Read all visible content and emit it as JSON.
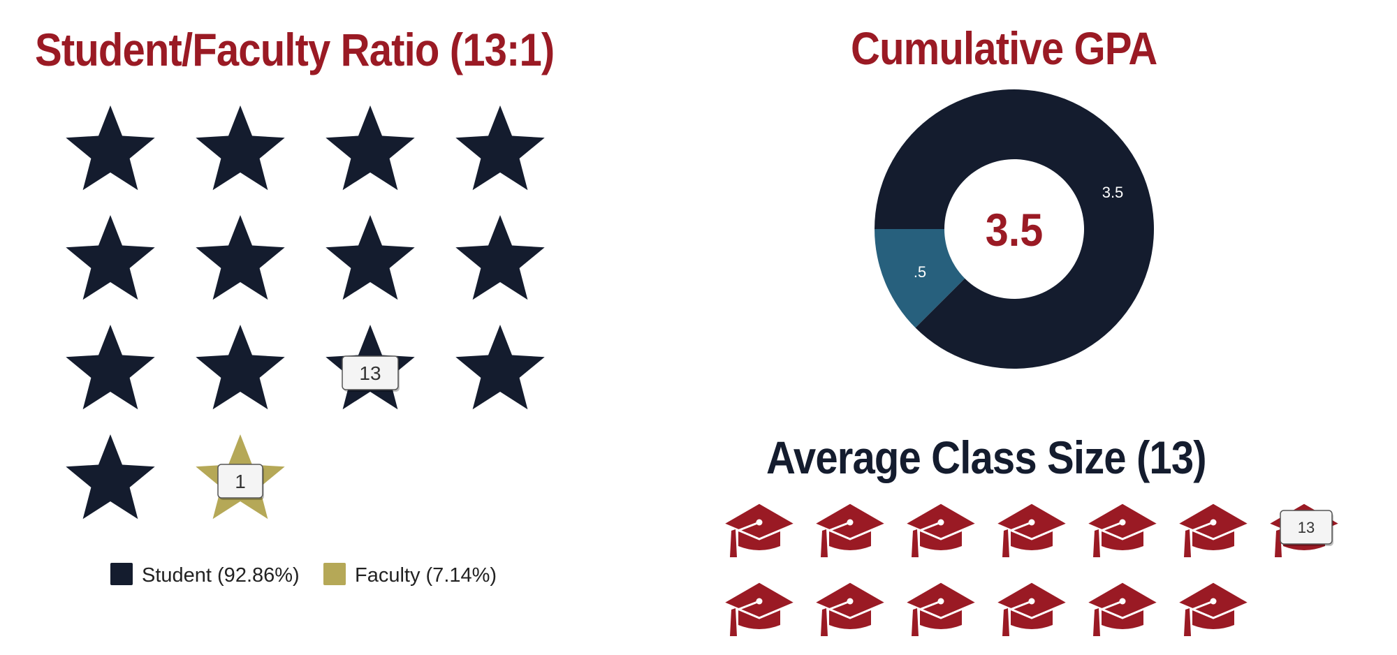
{
  "colors": {
    "student": "#141c2e",
    "faculty": "#b5a857",
    "gpa_main": "#141c2e",
    "gpa_rest": "#27607d",
    "cap": "#9a1a24",
    "title_red": "#9a1a24",
    "title_navy": "#141c2e"
  },
  "icons": {
    "ratio": "star-icon",
    "class_size": "graduation-cap-icon"
  },
  "chart_data": [
    {
      "type": "pictograph",
      "title": "Student/Faculty Ratio (13:1)",
      "icon": "star-icon",
      "series": [
        {
          "name": "Student",
          "value": 13,
          "label": "13",
          "legend": "Student (92.86%)",
          "color": "#141c2e"
        },
        {
          "name": "Faculty",
          "value": 1,
          "label": "1",
          "legend": "Faculty (7.14%)",
          "color": "#b5a857"
        }
      ],
      "columns": 4,
      "legend_position": "bottom"
    },
    {
      "type": "pie",
      "title": "Cumulative GPA",
      "center_label": "3.5",
      "slices": [
        {
          "value": 3.5,
          "label": "3.5",
          "color": "#141c2e"
        },
        {
          "value": 0.5,
          "label": ".5",
          "color": "#27607d"
        }
      ]
    },
    {
      "type": "pictograph",
      "title": "Average Class Size (13)",
      "icon": "graduation-cap-icon",
      "series": [
        {
          "value": 13,
          "label": "13",
          "color": "#9a1a24"
        }
      ],
      "columns": 7
    }
  ]
}
